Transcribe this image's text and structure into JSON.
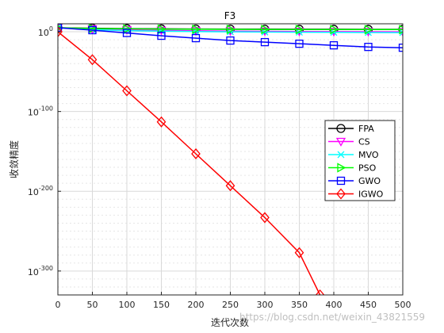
{
  "chart_data": {
    "type": "line",
    "title": "F3",
    "xlabel": "迭代次数",
    "ylabel": "收敛精度",
    "xlim": [
      0,
      500
    ],
    "yscale": "log",
    "ylim_exponent": [
      -330,
      10
    ],
    "xticks": [
      0,
      50,
      100,
      150,
      200,
      250,
      300,
      350,
      400,
      450,
      500
    ],
    "yticks": [
      {
        "base": "10",
        "exp": "0",
        "value_exp": 0
      },
      {
        "base": "10",
        "exp": "-100",
        "value_exp": -100
      },
      {
        "base": "10",
        "exp": "-200",
        "value_exp": -200
      },
      {
        "base": "10",
        "exp": "-300",
        "value_exp": -300
      }
    ],
    "grid": true,
    "legend_position": "right",
    "series": [
      {
        "name": "FPA",
        "color": "#000000",
        "marker": "circle",
        "x": [
          0,
          50,
          100,
          150,
          200,
          250,
          300,
          350,
          400,
          450,
          500
        ],
        "y_exp": [
          5,
          4.4,
          3.9,
          3.6,
          3.4,
          3.3,
          3.2,
          3.1,
          3.1,
          3.0,
          3.0
        ]
      },
      {
        "name": "CS",
        "color": "#ff00ff",
        "marker": "triangle-down",
        "x": [
          0,
          50,
          100,
          150,
          200,
          250,
          300,
          350,
          400,
          450,
          500
        ],
        "y_exp": [
          5,
          3.5,
          2.5,
          1.8,
          1.3,
          0.9,
          0.6,
          0.4,
          0.2,
          0.1,
          0
        ]
      },
      {
        "name": "MVO",
        "color": "#00ffff",
        "marker": "x",
        "x": [
          0,
          50,
          100,
          150,
          200,
          250,
          300,
          350,
          400,
          450,
          500
        ],
        "y_exp": [
          5,
          2.5,
          1.5,
          0.8,
          0.3,
          0,
          -0.3,
          -0.5,
          -0.7,
          -0.9,
          -1
        ]
      },
      {
        "name": "PSO",
        "color": "#00ff00",
        "marker": "triangle-right",
        "x": [
          0,
          50,
          100,
          150,
          200,
          250,
          300,
          350,
          400,
          450,
          500
        ],
        "y_exp": [
          5,
          4,
          3.6,
          3.3,
          3.1,
          3.0,
          2.9,
          2.8,
          2.8,
          2.7,
          2.7
        ]
      },
      {
        "name": "GWO",
        "color": "#0000ff",
        "marker": "square",
        "x": [
          0,
          50,
          100,
          150,
          200,
          250,
          300,
          350,
          400,
          450,
          500
        ],
        "y_exp": [
          5,
          2,
          -1.5,
          -5,
          -8,
          -11,
          -13,
          -15,
          -17,
          -19,
          -20
        ]
      },
      {
        "name": "IGWO",
        "color": "#ff0000",
        "marker": "diamond",
        "x": [
          0,
          50,
          100,
          150,
          200,
          250,
          300,
          350,
          380
        ],
        "y_exp": [
          0,
          -35,
          -74,
          -113,
          -153,
          -193,
          -233,
          -277,
          -330
        ]
      }
    ]
  },
  "watermark": "https://blog.csdn.net/weixin_43821559"
}
